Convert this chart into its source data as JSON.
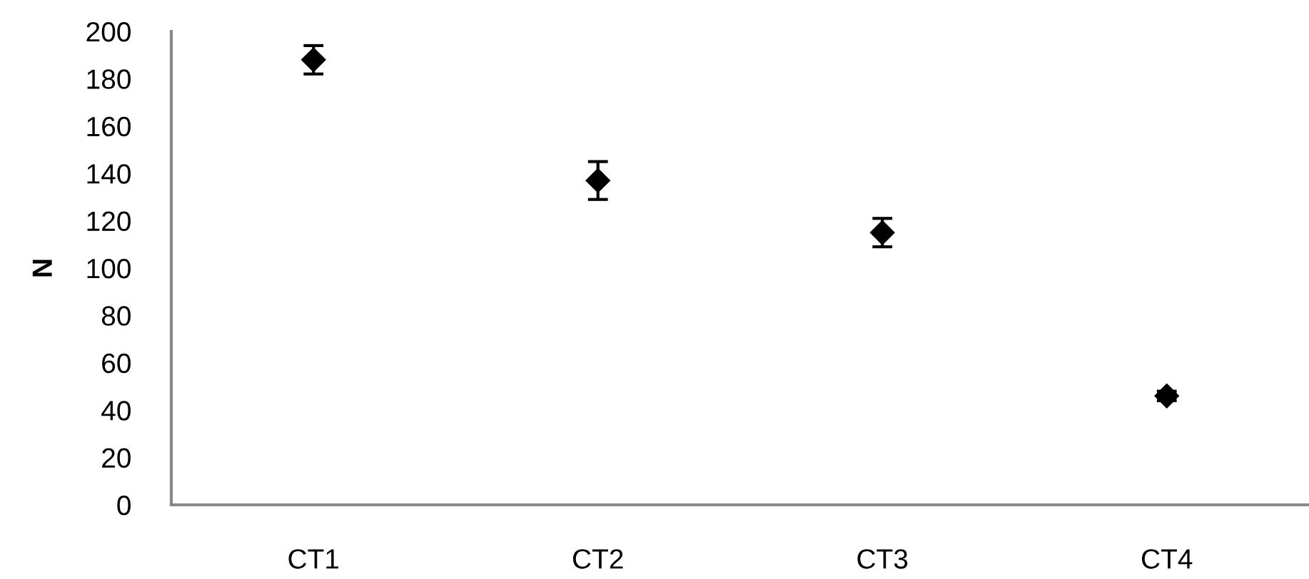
{
  "chart_data": {
    "type": "scatter",
    "ylabel": "N",
    "categories": [
      "CT1",
      "CT2",
      "CT3",
      "CT4"
    ],
    "values": [
      188,
      137,
      115,
      46
    ],
    "errors": [
      6,
      8,
      6,
      2
    ],
    "color": "#000000",
    "marker": "diamond",
    "ylim": [
      0,
      200
    ],
    "yticks": [
      0,
      20,
      40,
      60,
      80,
      100,
      120,
      140,
      160,
      180,
      200
    ],
    "grid": false,
    "legend": false
  }
}
